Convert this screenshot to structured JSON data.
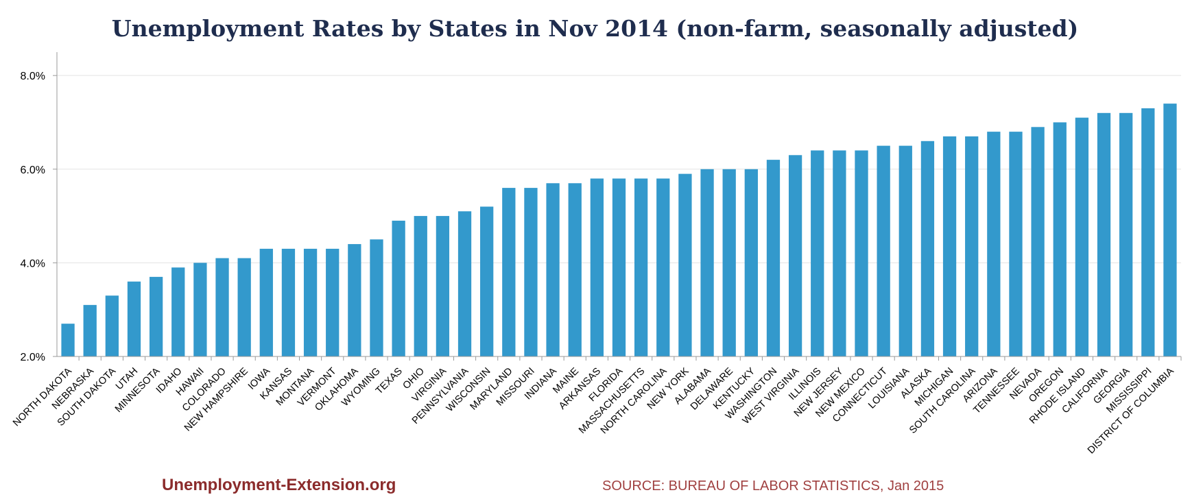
{
  "title": "Unemployment Rates by States in Nov 2014 (non-farm, seasonally adjusted)",
  "footer": {
    "brand": "Unemployment-Extension.org",
    "source": "SOURCE: BUREAU OF LABOR STATISTICS, Jan 2015"
  },
  "colors": {
    "bar": "#3399cc",
    "title": "#1f2d4e",
    "brand": "#8b2b2b"
  },
  "chart_data": {
    "type": "bar",
    "title": "Unemployment Rates by States in Nov 2014 (non-farm, seasonally adjusted)",
    "xlabel": "",
    "ylabel": "",
    "ylim": [
      2.0,
      8.5
    ],
    "yticks": [
      2.0,
      4.0,
      6.0,
      8.0
    ],
    "ytick_labels": [
      "2.0%",
      "4.0%",
      "6.0%",
      "8.0%"
    ],
    "grid": true,
    "legend": "none",
    "categories": [
      "NORTH DAKOTA",
      "NEBRASKA",
      "SOUTH DAKOTA",
      "UTAH",
      "MINNESOTA",
      "IDAHO",
      "HAWAII",
      "COLORADO",
      "NEW HAMPSHIRE",
      "IOWA",
      "KANSAS",
      "MONTANA",
      "VERMONT",
      "OKLAHOMA",
      "WYOMING",
      "TEXAS",
      "OHIO",
      "VIRGINIA",
      "PENNSYLVANIA",
      "WISCONSIN",
      "MARYLAND",
      "MISSOURI",
      "INDIANA",
      "MAINE",
      "ARKANSAS",
      "FLORIDA",
      "MASSACHUSETTS",
      "NORTH CAROLINA",
      "NEW YORK",
      "ALABAMA",
      "DELAWARE",
      "KENTUCKY",
      "WASHINGTON",
      "WEST VIRGINIA",
      "ILLINOIS",
      "NEW JERSEY",
      "NEW MEXICO",
      "CONNECTICUT",
      "LOUISIANA",
      "ALASKA",
      "MICHIGAN",
      "SOUTH CAROLINA",
      "ARIZONA",
      "TENNESSEE",
      "NEVADA",
      "OREGON",
      "RHODE ISLAND",
      "CALIFORNIA",
      "GEORGIA",
      "MISSISSIPPI",
      "DISTRICT OF COLUMBIA"
    ],
    "values": [
      2.7,
      3.1,
      3.3,
      3.6,
      3.7,
      3.9,
      4.0,
      4.1,
      4.1,
      4.3,
      4.3,
      4.3,
      4.3,
      4.4,
      4.5,
      4.9,
      5.0,
      5.0,
      5.1,
      5.2,
      5.6,
      5.6,
      5.7,
      5.7,
      5.8,
      5.8,
      5.8,
      5.8,
      5.9,
      6.0,
      6.0,
      6.0,
      6.2,
      6.3,
      6.4,
      6.4,
      6.4,
      6.5,
      6.5,
      6.6,
      6.7,
      6.7,
      6.8,
      6.8,
      6.9,
      7.0,
      7.1,
      7.2,
      7.2,
      7.3,
      7.4
    ]
  }
}
